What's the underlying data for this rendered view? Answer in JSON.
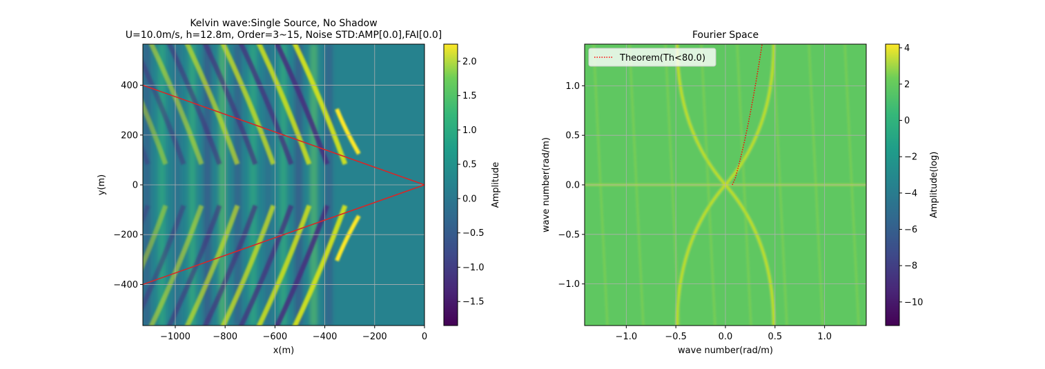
{
  "figure": {
    "background": "#ffffff"
  },
  "chart_data": [
    {
      "type": "heatmap",
      "title": "Kelvin wave:Single Source, No Shadow",
      "subtitle": "U=10.0m/s, h=12.8m, Order=3~15, Noise STD:AMP[0.0],FAI[0.0]",
      "xlabel": "x(m)",
      "ylabel": "y(m)",
      "xlim": [
        -1130,
        0
      ],
      "ylim": [
        -565,
        565
      ],
      "xticks": [
        -1000,
        -800,
        -600,
        -400,
        -200,
        0
      ],
      "xtick_labels": [
        "−1000",
        "−800",
        "−600",
        "−400",
        "−200",
        "0"
      ],
      "yticks": [
        -400,
        -200,
        0,
        200,
        400
      ],
      "ytick_labels": [
        "−400",
        "−200",
        "0",
        "200",
        "400"
      ],
      "grid": true,
      "colormap": "viridis",
      "colorbar": {
        "label": "Amplitude",
        "range": [
          -1.85,
          2.25
        ],
        "ticks": [
          -1.5,
          -1.0,
          -0.5,
          0.0,
          0.5,
          1.0,
          1.5,
          2.0
        ],
        "tick_labels": [
          "−1.5",
          "−1.0",
          "−0.5",
          "0.0",
          "0.5",
          "1.0",
          "1.5",
          "2.0"
        ]
      },
      "lines": [
        {
          "x": [
            -1130,
            0
          ],
          "y": [
            400,
            0
          ],
          "color": "#d62728",
          "style": "solid"
        },
        {
          "x": [
            -1130,
            0
          ],
          "y": [
            -400,
            0
          ],
          "color": "#d62728",
          "style": "solid"
        }
      ]
    },
    {
      "type": "heatmap",
      "title": "Fourier Space",
      "xlabel": "wave number(rad/m)",
      "ylabel": "wave number(rad/m)",
      "xlim": [
        -1.42,
        1.42
      ],
      "ylim": [
        -1.42,
        1.42
      ],
      "xticks": [
        -1.0,
        -0.5,
        0.0,
        0.5,
        1.0
      ],
      "xtick_labels": [
        "−1.0",
        "−0.5",
        "0.0",
        "0.5",
        "1.0"
      ],
      "yticks": [
        -1.0,
        -0.5,
        0.0,
        0.5,
        1.0
      ],
      "ytick_labels": [
        "−1.0",
        "−0.5",
        "0.0",
        "0.5",
        "1.0"
      ],
      "grid": true,
      "colormap": "viridis",
      "colorbar": {
        "label": "Amplitude(log)",
        "range": [
          -11.3,
          4.2
        ],
        "ticks": [
          -10,
          -8,
          -6,
          -4,
          -2,
          0,
          2,
          4
        ],
        "tick_labels": [
          "−10",
          "−8",
          "−6",
          "−4",
          "−2",
          "0",
          "2",
          "4"
        ]
      },
      "legend": {
        "position": "top-left",
        "entries": [
          {
            "label": "Theorem(Th<80.0)",
            "color": "#ff0000",
            "style": "dotted"
          }
        ]
      },
      "series": [
        {
          "name": "Theorem(Th<80.0)",
          "color": "#ff0000",
          "style": "dotted",
          "x": [
            0.07,
            0.1,
            0.13,
            0.16,
            0.19,
            0.22,
            0.25,
            0.28,
            0.31,
            0.34,
            0.37
          ],
          "y": [
            0.0,
            0.07,
            0.18,
            0.3,
            0.43,
            0.57,
            0.72,
            0.88,
            1.05,
            1.23,
            1.42
          ]
        }
      ]
    }
  ]
}
